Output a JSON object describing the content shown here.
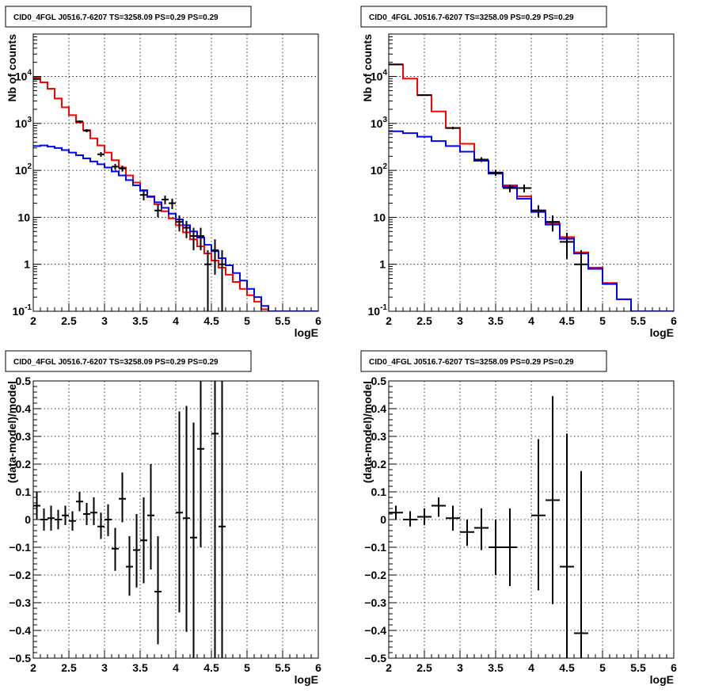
{
  "chart_data": [
    {
      "type": "line",
      "title": "CID0_4FGL J0516.7-6207 TS=3258.09 PS=0.29 PS=0.29",
      "xlabel": "logE",
      "ylabel": "Nb of counts",
      "xlim": [
        2,
        6
      ],
      "ylim": [
        0.1,
        80000
      ],
      "yscale": "log",
      "grid": true,
      "x_ticks": [
        "2",
        "2.5",
        "3",
        "3.5",
        "4",
        "4.5",
        "5",
        "5.5",
        "6"
      ],
      "y_ticks": [
        {
          "value": 0.1,
          "mantissa": "10",
          "exp": "-1"
        },
        {
          "value": 1,
          "mantissa": "1",
          "exp": ""
        },
        {
          "value": 10,
          "mantissa": "10",
          "exp": ""
        },
        {
          "value": 100,
          "mantissa": "10",
          "exp": "2"
        },
        {
          "value": 1000,
          "mantissa": "10",
          "exp": "3"
        },
        {
          "value": 10000,
          "mantissa": "10",
          "exp": "4"
        }
      ],
      "bin_edges": [
        2.0,
        2.1,
        2.2,
        2.3,
        2.4,
        2.5,
        2.6,
        2.7,
        2.8,
        2.9,
        3.0,
        3.1,
        3.2,
        3.3,
        3.4,
        3.5,
        3.6,
        3.7,
        3.8,
        3.9,
        4.0,
        4.1,
        4.2,
        4.3,
        4.4,
        4.5,
        4.6,
        4.7,
        4.8,
        4.9,
        5.0,
        5.1,
        5.2,
        5.3,
        5.4,
        5.5,
        5.6,
        5.7,
        5.8,
        5.9,
        6.0
      ],
      "series": [
        {
          "color": "#ff0000",
          "style": "step",
          "values": [
            9500,
            7500,
            5500,
            3400,
            2200,
            1500,
            1050,
            720,
            480,
            340,
            240,
            165,
            115,
            78,
            55,
            38,
            27,
            19,
            13.5,
            9.5,
            6.8,
            4.8,
            3.4,
            2.4,
            1.7,
            1.2,
            0.85,
            0.6,
            0.42,
            0.3,
            0.22,
            0.16,
            0.11,
            0.1,
            0.1,
            0.1,
            0.1,
            0.1,
            0.1,
            0.1
          ]
        },
        {
          "color": "#0000ff",
          "style": "step",
          "values": [
            330,
            340,
            320,
            300,
            270,
            240,
            210,
            180,
            155,
            135,
            115,
            95,
            78,
            62,
            48,
            37,
            28,
            21,
            16,
            12,
            9,
            6.8,
            5,
            3.7,
            2.6,
            1.9,
            1.35,
            0.95,
            0.65,
            0.45,
            0.3,
            0.2,
            0.13,
            0.1,
            0.1,
            0.1,
            0.1,
            0.1,
            0.1,
            0.1
          ]
        },
        {
          "color": "#000000",
          "style": "errorbar",
          "points": [
            {
              "x": 2.05,
              "y": 8800,
              "lo": 8600,
              "hi": 9000
            },
            {
              "x": 2.65,
              "y": 1100,
              "lo": 1040,
              "hi": 1160
            },
            {
              "x": 2.75,
              "y": 700,
              "lo": 650,
              "hi": 750
            },
            {
              "x": 2.95,
              "y": 220,
              "lo": 195,
              "hi": 245
            },
            {
              "x": 3.15,
              "y": 120,
              "lo": 103,
              "hi": 137
            },
            {
              "x": 3.25,
              "y": 110,
              "lo": 94,
              "hi": 126
            },
            {
              "x": 3.55,
              "y": 30,
              "lo": 23,
              "hi": 37
            },
            {
              "x": 3.75,
              "y": 14,
              "lo": 10,
              "hi": 19
            },
            {
              "x": 3.85,
              "y": 24,
              "lo": 19,
              "hi": 29
            },
            {
              "x": 3.95,
              "y": 20,
              "lo": 15,
              "hi": 25
            },
            {
              "x": 4.05,
              "y": 8,
              "lo": 5,
              "hi": 11
            },
            {
              "x": 4.15,
              "y": 6,
              "lo": 3.6,
              "hi": 8.4
            },
            {
              "x": 4.25,
              "y": 4,
              "lo": 2,
              "hi": 6
            },
            {
              "x": 4.35,
              "y": 4,
              "lo": 2,
              "hi": 6
            },
            {
              "x": 4.45,
              "y": 1,
              "lo": 0.1,
              "hi": 2
            },
            {
              "x": 4.55,
              "y": 2,
              "lo": 0.6,
              "hi": 3.4
            },
            {
              "x": 4.65,
              "y": 1,
              "lo": 0.1,
              "hi": 2
            }
          ]
        }
      ]
    },
    {
      "type": "line",
      "title": "CID0_4FGL J0516.7-6207 TS=3258.09 PS=0.29 PS=0.29",
      "xlabel": "logE",
      "ylabel": "Nb of counts",
      "xlim": [
        2,
        6
      ],
      "ylim": [
        0.1,
        80000
      ],
      "yscale": "log",
      "grid": true,
      "x_ticks": [
        "2",
        "2.5",
        "3",
        "3.5",
        "4",
        "4.5",
        "5",
        "5.5",
        "6"
      ],
      "y_ticks": [
        {
          "value": 0.1,
          "mantissa": "10",
          "exp": "-1"
        },
        {
          "value": 1,
          "mantissa": "1",
          "exp": ""
        },
        {
          "value": 10,
          "mantissa": "10",
          "exp": ""
        },
        {
          "value": 100,
          "mantissa": "10",
          "exp": "2"
        },
        {
          "value": 1000,
          "mantissa": "10",
          "exp": "3"
        },
        {
          "value": 10000,
          "mantissa": "10",
          "exp": "4"
        }
      ],
      "bin_edges": [
        2.0,
        2.2,
        2.4,
        2.6,
        2.8,
        3.0,
        3.2,
        3.4,
        3.6,
        3.8,
        4.0,
        4.2,
        4.4,
        4.6,
        4.8,
        5.0,
        5.2,
        5.4,
        5.6,
        5.8,
        6.0
      ],
      "series": [
        {
          "color": "#ff0000",
          "style": "step",
          "values": [
            18000,
            9000,
            4000,
            1800,
            800,
            370,
            160,
            90,
            48,
            28,
            14,
            7.5,
            3.8,
            1.8,
            0.85,
            0.4,
            0.18,
            0.1,
            0.1,
            0.1
          ]
        },
        {
          "color": "#0000ff",
          "style": "step",
          "values": [
            680,
            620,
            520,
            420,
            330,
            250,
            160,
            85,
            45,
            25,
            13,
            7,
            3.5,
            1.7,
            0.8,
            0.38,
            0.18,
            0.1,
            0.1,
            0.1
          ]
        },
        {
          "color": "#000000",
          "style": "errorbar",
          "points": [
            {
              "x": 2.1,
              "y": 18000,
              "lo": 17700,
              "hi": 18300
            },
            {
              "x": 2.5,
              "y": 4000,
              "lo": 3880,
              "hi": 4120
            },
            {
              "x": 2.9,
              "y": 800,
              "lo": 750,
              "hi": 850
            },
            {
              "x": 3.3,
              "y": 170,
              "lo": 150,
              "hi": 190
            },
            {
              "x": 3.5,
              "y": 90,
              "lo": 77,
              "hi": 103
            },
            {
              "x": 3.7,
              "y": 42,
              "lo": 34,
              "hi": 50
            },
            {
              "x": 3.9,
              "y": 42,
              "lo": 34,
              "hi": 50
            },
            {
              "x": 4.1,
              "y": 14,
              "lo": 10,
              "hi": 18
            },
            {
              "x": 4.3,
              "y": 8,
              "lo": 5,
              "hi": 11
            },
            {
              "x": 4.5,
              "y": 3,
              "lo": 1.3,
              "hi": 4.7
            },
            {
              "x": 4.7,
              "y": 1,
              "lo": 0.1,
              "hi": 2
            }
          ]
        }
      ]
    },
    {
      "type": "scatter",
      "title": "CID0_4FGL J0516.7-6207 TS=3258.09 PS=0.29 PS=0.29",
      "xlabel": "logE",
      "ylabel": "(data-model)/model",
      "xlim": [
        2,
        6
      ],
      "ylim": [
        -0.5,
        0.5
      ],
      "yscale": "linear",
      "grid": true,
      "x_ticks": [
        "2",
        "2.5",
        "3",
        "3.5",
        "4",
        "4.5",
        "5",
        "5.5",
        "6"
      ],
      "y_tick_values": [
        -0.5,
        -0.4,
        -0.3,
        -0.2,
        -0.1,
        0,
        0.1,
        0.2,
        0.3,
        0.4,
        0.5
      ],
      "y_tick_labels": [
        "−0.5",
        "−0.4",
        "−0.3",
        "−0.2",
        "−0.1",
        "0",
        "0.1",
        "0.2",
        "0.3",
        "0.4",
        "0.5"
      ],
      "xerr": 0.05,
      "series": [
        {
          "color": "#000000",
          "style": "errorbar",
          "points": [
            {
              "x": 2.05,
              "y": 0.05,
              "lo": 0.0,
              "hi": 0.1
            },
            {
              "x": 2.15,
              "y": 0.0,
              "lo": -0.04,
              "hi": 0.04
            },
            {
              "x": 2.25,
              "y": 0.005,
              "lo": -0.04,
              "hi": 0.05
            },
            {
              "x": 2.35,
              "y": 0.0,
              "lo": -0.035,
              "hi": 0.035
            },
            {
              "x": 2.45,
              "y": 0.015,
              "lo": -0.02,
              "hi": 0.05
            },
            {
              "x": 2.55,
              "y": -0.005,
              "lo": -0.04,
              "hi": 0.03
            },
            {
              "x": 2.65,
              "y": 0.065,
              "lo": 0.03,
              "hi": 0.1
            },
            {
              "x": 2.75,
              "y": 0.02,
              "lo": -0.02,
              "hi": 0.06
            },
            {
              "x": 2.85,
              "y": 0.025,
              "lo": -0.02,
              "hi": 0.08
            },
            {
              "x": 2.95,
              "y": -0.025,
              "lo": -0.07,
              "hi": 0.025
            },
            {
              "x": 3.05,
              "y": 0.0,
              "lo": -0.06,
              "hi": 0.055
            },
            {
              "x": 3.15,
              "y": -0.105,
              "lo": -0.185,
              "hi": -0.03
            },
            {
              "x": 3.25,
              "y": 0.075,
              "lo": -0.01,
              "hi": 0.17
            },
            {
              "x": 3.35,
              "y": -0.17,
              "lo": -0.275,
              "hi": -0.06
            },
            {
              "x": 3.45,
              "y": -0.11,
              "lo": -0.245,
              "hi": 0.02
            },
            {
              "x": 3.55,
              "y": -0.075,
              "lo": -0.23,
              "hi": 0.08
            },
            {
              "x": 3.65,
              "y": 0.015,
              "lo": -0.18,
              "hi": 0.2
            },
            {
              "x": 3.75,
              "y": -0.26,
              "lo": -0.45,
              "hi": -0.06
            },
            {
              "x": 4.05,
              "y": 0.025,
              "lo": -0.335,
              "hi": 0.39
            },
            {
              "x": 4.15,
              "y": 0.005,
              "lo": -0.405,
              "hi": 0.41
            },
            {
              "x": 4.25,
              "y": -0.065,
              "lo": -0.5,
              "hi": 0.35
            },
            {
              "x": 4.35,
              "y": 0.255,
              "lo": -0.1,
              "hi": 0.5
            },
            {
              "x": 4.55,
              "y": 0.31,
              "lo": -0.5,
              "hi": 0.5
            },
            {
              "x": 4.65,
              "y": -0.025,
              "lo": -0.5,
              "hi": 0.5
            }
          ]
        }
      ]
    },
    {
      "type": "scatter",
      "title": "CID0_4FGL J0516.7-6207 TS=3258.09 PS=0.29 PS=0.29",
      "xlabel": "logE",
      "ylabel": "(data-model)/model",
      "xlim": [
        2,
        6
      ],
      "ylim": [
        -0.5,
        0.5
      ],
      "yscale": "linear",
      "grid": true,
      "x_ticks": [
        "2",
        "2.5",
        "3",
        "3.5",
        "4",
        "4.5",
        "5",
        "5.5",
        "6"
      ],
      "y_tick_values": [
        -0.5,
        -0.4,
        -0.3,
        -0.2,
        -0.1,
        0,
        0.1,
        0.2,
        0.3,
        0.4,
        0.5
      ],
      "y_tick_labels": [
        "−0.5",
        "−0.4",
        "−0.3",
        "−0.2",
        "−0.1",
        "0",
        "0.1",
        "0.2",
        "0.3",
        "0.4",
        "0.5"
      ],
      "xerr": 0.1,
      "series": [
        {
          "color": "#000000",
          "style": "errorbar",
          "points": [
            {
              "x": 2.1,
              "y": 0.025,
              "lo": 0.0,
              "hi": 0.05
            },
            {
              "x": 2.3,
              "y": 0.0,
              "lo": -0.025,
              "hi": 0.03
            },
            {
              "x": 2.5,
              "y": 0.01,
              "lo": -0.02,
              "hi": 0.04
            },
            {
              "x": 2.7,
              "y": 0.05,
              "lo": 0.01,
              "hi": 0.08
            },
            {
              "x": 2.9,
              "y": 0.005,
              "lo": -0.04,
              "hi": 0.05
            },
            {
              "x": 3.1,
              "y": -0.045,
              "lo": -0.095,
              "hi": 0.0
            },
            {
              "x": 3.3,
              "y": -0.03,
              "lo": -0.11,
              "hi": 0.04
            },
            {
              "x": 3.5,
              "y": -0.1,
              "lo": -0.2,
              "hi": 0.0
            },
            {
              "x": 3.7,
              "y": -0.1,
              "lo": -0.24,
              "hi": 0.04
            },
            {
              "x": 4.1,
              "y": 0.015,
              "lo": -0.255,
              "hi": 0.29
            },
            {
              "x": 4.3,
              "y": 0.07,
              "lo": -0.305,
              "hi": 0.445
            },
            {
              "x": 4.5,
              "y": -0.17,
              "lo": -0.5,
              "hi": 0.31
            },
            {
              "x": 4.7,
              "y": -0.41,
              "lo": -0.5,
              "hi": 0.175
            }
          ]
        }
      ]
    }
  ]
}
